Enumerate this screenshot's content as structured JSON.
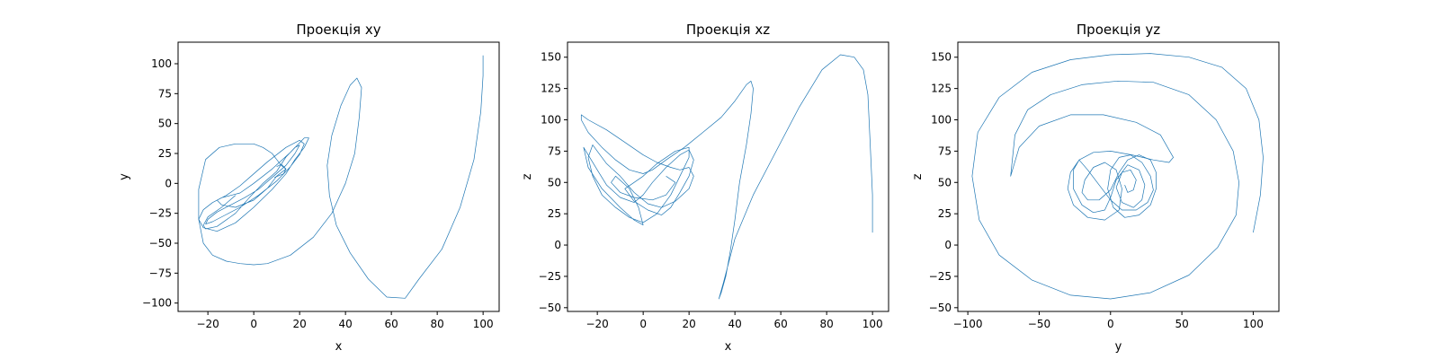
{
  "colors": {
    "series": "#1f77b4",
    "axes": "#000000",
    "background": "#ffffff"
  },
  "chart_data": [
    {
      "type": "line",
      "title": "Проекція xy",
      "xlabel": "x",
      "ylabel": "y",
      "xlim": [
        -33,
        107
      ],
      "ylim": [
        -107,
        118
      ],
      "xticks": [
        -20,
        0,
        20,
        40,
        60,
        80,
        100
      ],
      "yticks": [
        -100,
        -75,
        -50,
        -25,
        0,
        25,
        50,
        75,
        100
      ],
      "xtick_labels": [
        "−20",
        "0",
        "20",
        "40",
        "60",
        "80",
        "100"
      ],
      "ytick_labels": [
        "−100",
        "−75",
        "−50",
        "−25",
        "0",
        "25",
        "50",
        "75",
        "100"
      ],
      "grid": false,
      "series": [
        {
          "x": [
            100,
            100,
            100,
            99,
            96,
            90,
            82,
            72,
            66,
            58,
            50,
            42,
            36,
            33,
            32,
            34,
            38,
            42,
            45,
            47,
            46,
            44,
            40,
            34,
            26,
            16,
            6,
            0,
            -6,
            -12,
            -18,
            -22,
            -24,
            -24,
            -21,
            -15,
            -8,
            0,
            4,
            8,
            10,
            12,
            14,
            13,
            9
          ],
          "y": [
            107,
            100,
            90,
            60,
            20,
            -20,
            -55,
            -80,
            -96,
            -95,
            -80,
            -58,
            -35,
            -10,
            15,
            40,
            65,
            82,
            88,
            80,
            55,
            25,
            0,
            -25,
            -45,
            -60,
            -67,
            -68,
            -67,
            -65,
            -60,
            -50,
            -30,
            -5,
            20,
            30,
            33,
            33,
            30,
            25,
            20,
            15,
            12,
            8,
            5
          ]
        },
        {
          "x": [
            -8,
            -14,
            -20,
            -22,
            -21,
            -16,
            -8,
            -2,
            4,
            10,
            14,
            18,
            20,
            18,
            14,
            8,
            2,
            -4,
            -10,
            -16,
            -20,
            -21,
            -18,
            -12,
            -6,
            2,
            10,
            16,
            20,
            22,
            20,
            14,
            6,
            0,
            -6,
            -12,
            -18,
            -22,
            -24,
            -22,
            -16,
            -8,
            0,
            8,
            14,
            18,
            22,
            24,
            22,
            16,
            8,
            0,
            -6,
            -10,
            -14,
            -16,
            -14,
            -8,
            0,
            6,
            10,
            14,
            12,
            10
          ],
          "y": [
            -10,
            -20,
            -28,
            -35,
            -38,
            -36,
            -25,
            -12,
            0,
            10,
            22,
            30,
            32,
            25,
            15,
            5,
            -5,
            -12,
            -18,
            -24,
            -30,
            -34,
            -32,
            -26,
            -20,
            -10,
            2,
            14,
            24,
            33,
            36,
            30,
            18,
            8,
            -2,
            -10,
            -16,
            -22,
            -30,
            -37,
            -40,
            -33,
            -20,
            -5,
            8,
            20,
            30,
            38,
            38,
            26,
            12,
            0,
            -8,
            -10,
            -12,
            -14,
            -18,
            -20,
            -14,
            -4,
            6,
            12,
            16,
            14
          ]
        }
      ]
    },
    {
      "type": "line",
      "title": "Проекція xz",
      "xlabel": "x",
      "ylabel": "z",
      "xlim": [
        -33,
        107
      ],
      "ylim": [
        -53,
        162
      ],
      "xticks": [
        -20,
        0,
        20,
        40,
        60,
        80,
        100
      ],
      "yticks": [
        -50,
        -25,
        0,
        25,
        50,
        75,
        100,
        125,
        150
      ],
      "xtick_labels": [
        "−20",
        "0",
        "20",
        "40",
        "60",
        "80",
        "100"
      ],
      "ytick_labels": [
        "−50",
        "−25",
        "0",
        "25",
        "50",
        "75",
        "100",
        "125",
        "150"
      ],
      "grid": false,
      "series": [
        {
          "x": [
            100,
            100,
            99,
            98,
            96,
            92,
            86,
            78,
            68,
            58,
            48,
            40,
            35,
            33,
            34,
            36,
            38,
            40,
            42,
            45,
            47,
            48,
            47,
            45,
            40,
            34,
            26,
            18,
            10,
            4,
            0,
            -6,
            -12,
            -18,
            -24,
            -27,
            -27,
            -24,
            -16,
            -8,
            0,
            6,
            12,
            16
          ],
          "y": [
            10,
            40,
            80,
            120,
            140,
            150,
            152,
            140,
            110,
            75,
            40,
            5,
            -30,
            -43,
            -38,
            -25,
            -5,
            20,
            50,
            80,
            105,
            125,
            131,
            128,
            115,
            102,
            90,
            78,
            68,
            60,
            57,
            60,
            68,
            78,
            90,
            100,
            104,
            100,
            92,
            82,
            72,
            66,
            62,
            60
          ]
        },
        {
          "x": [
            16,
            20,
            22,
            20,
            14,
            8,
            2,
            -4,
            -10,
            -16,
            -20,
            -22,
            -24,
            -22,
            -18,
            -12,
            -6,
            0,
            6,
            12,
            16,
            20,
            20,
            14,
            6,
            0,
            -4,
            -8,
            -4,
            2,
            8,
            12,
            16,
            20,
            22,
            20,
            16,
            10,
            4,
            0,
            -4,
            -10,
            -16,
            -20,
            -24,
            -26,
            -24,
            -18,
            -10,
            -4,
            0,
            -2,
            -6,
            -12,
            -14,
            -10,
            -4,
            4,
            10,
            14,
            10
          ],
          "y": [
            60,
            62,
            55,
            45,
            35,
            30,
            33,
            42,
            55,
            65,
            75,
            80,
            70,
            55,
            40,
            30,
            22,
            18,
            25,
            40,
            55,
            70,
            78,
            75,
            65,
            55,
            50,
            45,
            35,
            28,
            24,
            30,
            42,
            55,
            68,
            76,
            72,
            62,
            50,
            40,
            34,
            38,
            48,
            60,
            72,
            78,
            62,
            45,
            30,
            20,
            16,
            30,
            45,
            55,
            50,
            42,
            38,
            36,
            40,
            50,
            55
          ]
        }
      ]
    },
    {
      "type": "line",
      "title": "Проекція yz",
      "xlabel": "y",
      "ylabel": "z",
      "xlim": [
        -107,
        118
      ],
      "ylim": [
        -53,
        162
      ],
      "xticks": [
        -100,
        -50,
        0,
        50,
        100
      ],
      "yticks": [
        -50,
        -25,
        0,
        25,
        50,
        75,
        100,
        125,
        150
      ],
      "xtick_labels": [
        "−100",
        "−50",
        "0",
        "50",
        "100"
      ],
      "ytick_labels": [
        "−50",
        "−25",
        "0",
        "25",
        "50",
        "75",
        "100",
        "125",
        "150"
      ],
      "grid": false,
      "series": [
        {
          "x": [
            100,
            105,
            107,
            104,
            95,
            78,
            55,
            28,
            0,
            -28,
            -55,
            -78,
            -93,
            -97,
            -92,
            -78,
            -55,
            -28,
            0,
            28,
            55,
            75,
            88,
            90,
            86,
            74,
            55,
            30,
            5,
            -20,
            -42,
            -58,
            -67,
            -70,
            -64,
            -50,
            -28,
            -5,
            18,
            35,
            44,
            41,
            30,
            15
          ],
          "y": [
            10,
            40,
            70,
            100,
            125,
            142,
            150,
            153,
            152,
            148,
            138,
            118,
            90,
            55,
            20,
            -8,
            -28,
            -40,
            -43,
            -38,
            -24,
            -2,
            24,
            50,
            75,
            100,
            120,
            130,
            131,
            128,
            120,
            108,
            88,
            55,
            78,
            95,
            104,
            104,
            98,
            88,
            70,
            66,
            68,
            72
          ]
        },
        {
          "x": [
            15,
            0,
            -12,
            -22,
            -28,
            -30,
            -26,
            -16,
            -4,
            6,
            8,
            4,
            -4,
            -12,
            -18,
            -20,
            -16,
            -8,
            0,
            6,
            12,
            20,
            28,
            32,
            32,
            28,
            20,
            10,
            2,
            -2,
            0,
            6,
            14,
            22,
            28,
            30,
            26,
            18,
            8,
            0,
            -8,
            -16,
            -22,
            -26,
            -26,
            -20,
            -12,
            -4,
            0,
            4,
            12,
            20,
            24,
            22,
            16,
            8,
            4,
            8,
            14,
            18,
            16,
            12,
            10
          ],
          "y": [
            72,
            75,
            74,
            68,
            58,
            45,
            32,
            22,
            20,
            28,
            45,
            60,
            66,
            62,
            52,
            42,
            36,
            36,
            44,
            58,
            68,
            72,
            68,
            58,
            45,
            32,
            24,
            22,
            30,
            45,
            60,
            70,
            72,
            66,
            55,
            44,
            34,
            28,
            28,
            36,
            48,
            60,
            68,
            60,
            45,
            32,
            26,
            28,
            38,
            52,
            64,
            60,
            48,
            36,
            30,
            34,
            46,
            58,
            60,
            52,
            44,
            42,
            48
          ]
        }
      ]
    }
  ]
}
